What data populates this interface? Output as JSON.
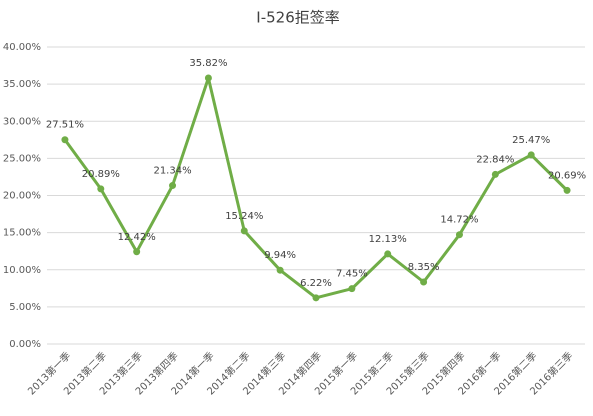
{
  "chart_data": {
    "type": "line",
    "title": "I-526拒签率",
    "categories": [
      "2013第一季",
      "2013第二季",
      "2013第三季",
      "2013第四季",
      "2014第一季",
      "2014第二季",
      "2014第三季",
      "2014第四季",
      "2015第一季",
      "2015第二季",
      "2015第三季",
      "2015第四季",
      "2016第一季",
      "2016第二季",
      "2016第三季"
    ],
    "series": [
      {
        "name": "I-526拒签率",
        "color": "#70ad47",
        "values": [
          27.51,
          20.89,
          12.42,
          21.34,
          35.82,
          15.24,
          9.94,
          6.22,
          7.45,
          12.13,
          8.35,
          14.72,
          22.84,
          25.47,
          20.69
        ],
        "value_labels": [
          "27.51%",
          "20.89%",
          "12.42%",
          "21.34%",
          "35.82%",
          "15.24%",
          "9.94%",
          "6.22%",
          "7.45%",
          "12.13%",
          "8.35%",
          "14.72%",
          "22.84%",
          "25.47%",
          "20.69%"
        ]
      }
    ],
    "ylim": [
      0,
      40
    ],
    "yticks": [
      {
        "value": 0,
        "label": "0.00%"
      },
      {
        "value": 5,
        "label": "5.00%"
      },
      {
        "value": 10,
        "label": "10.00%"
      },
      {
        "value": 15,
        "label": "15.00%"
      },
      {
        "value": 20,
        "label": "20.00%"
      },
      {
        "value": 25,
        "label": "25.00%"
      },
      {
        "value": 30,
        "label": "30.00%"
      },
      {
        "value": 35,
        "label": "35.00%"
      },
      {
        "value": 40,
        "label": "40.00%"
      }
    ],
    "grid": true
  }
}
